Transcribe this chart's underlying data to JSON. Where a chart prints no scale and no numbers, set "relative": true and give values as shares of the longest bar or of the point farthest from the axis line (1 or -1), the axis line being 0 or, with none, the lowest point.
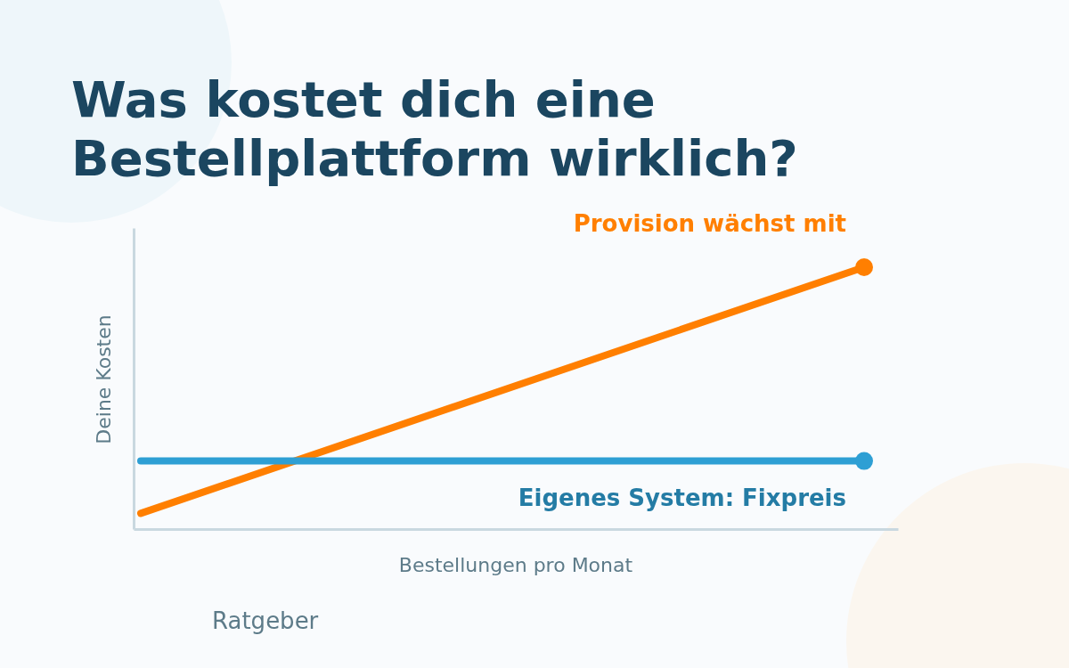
{
  "chart_data": {
    "type": "line",
    "title": "Was kostet dich eine Bestellplattform wirklich?",
    "xlabel": "Bestellungen pro Monat",
    "ylabel": "Deine Kosten",
    "categories": [
      null,
      null
    ],
    "relative": true,
    "marker": "circle",
    "line_style": "solid",
    "series": [
      {
        "name": "Provision wächst mit",
        "color": "#ff7f00",
        "values": [
          0.06,
          1
        ]
      },
      {
        "name": "Eigenes System: Fixpreis",
        "color": "#2e9fd4",
        "values": [
          0.26,
          0.26
        ]
      }
    ],
    "annotations": [
      "Ratgeber"
    ]
  }
}
